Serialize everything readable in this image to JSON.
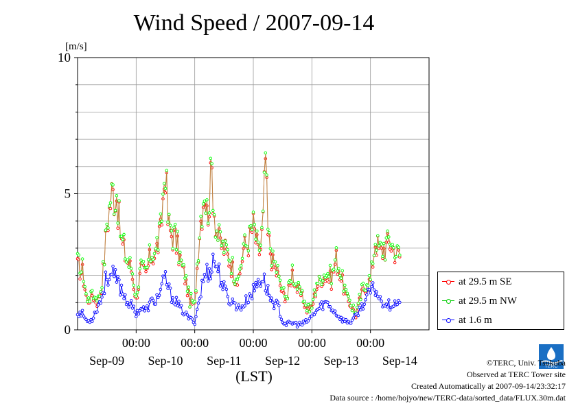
{
  "page": {
    "logo_text": "TERC",
    "footer": {
      "copyright": "©TERC, Univ. Tsukuba",
      "observed": "Observed at TERC Tower site",
      "created": "Created Automatically at 2007-09-14/23:32:17",
      "source": "Data source : /home/hojyo/new/TERC-data/sorted_data/FLUX.30m.dat"
    }
  },
  "chart_data": {
    "type": "line",
    "title": "Wind Speed / 2007-09-14",
    "xlabel": "(LST)",
    "ylabel": "[m/s]",
    "ylim": [
      0,
      10
    ],
    "yticks": [
      0,
      5,
      10
    ],
    "x_range_hours": [
      0,
      144
    ],
    "x_tick_labels": [
      "00:00",
      "00:00",
      "00:00",
      "00:00",
      "00:00"
    ],
    "x_tick_hours": [
      24,
      48,
      72,
      96,
      120
    ],
    "date_labels": [
      {
        "label": "Sep-09",
        "hour": 12
      },
      {
        "label": "Sep-10",
        "hour": 36
      },
      {
        "label": "Sep-11",
        "hour": 60
      },
      {
        "label": "Sep-12",
        "hour": 84
      },
      {
        "label": "Sep-13",
        "hour": 108
      },
      {
        "label": "Sep-14",
        "hour": 132
      }
    ],
    "grid": true,
    "legend_position": "right",
    "sample_interval_hours": 0.5,
    "series": [
      {
        "name": "at 29.5 m SE",
        "color": "#ff0000",
        "key_values": [
          [
            0,
            2.3
          ],
          [
            2,
            2.1
          ],
          [
            4,
            1.0
          ],
          [
            6,
            1.3
          ],
          [
            8,
            1.0
          ],
          [
            10,
            1.6
          ],
          [
            12,
            3.8
          ],
          [
            14,
            5.0
          ],
          [
            16,
            4.9
          ],
          [
            17,
            4.0
          ],
          [
            18,
            3.2
          ],
          [
            20,
            2.6
          ],
          [
            22,
            2.2
          ],
          [
            24,
            1.1
          ],
          [
            26,
            2.2
          ],
          [
            28,
            2.0
          ],
          [
            30,
            2.7
          ],
          [
            32,
            2.8
          ],
          [
            34,
            3.5
          ],
          [
            36,
            6.0
          ],
          [
            37,
            4.0
          ],
          [
            38,
            3.6
          ],
          [
            40,
            3.3
          ],
          [
            42,
            2.6
          ],
          [
            44,
            1.9
          ],
          [
            46,
            1.0
          ],
          [
            48,
            0.9
          ],
          [
            50,
            3.7
          ],
          [
            52,
            5.2
          ],
          [
            53,
            4.2
          ],
          [
            54,
            4.8
          ],
          [
            55,
            5.8
          ],
          [
            56,
            4.4
          ],
          [
            57,
            3.7
          ],
          [
            58,
            3.2
          ],
          [
            60,
            3.0
          ],
          [
            62,
            2.6
          ],
          [
            64,
            2.1
          ],
          [
            66,
            1.7
          ],
          [
            68,
            3.0
          ],
          [
            70,
            3.2
          ],
          [
            72,
            3.8
          ],
          [
            74,
            2.8
          ],
          [
            75,
            3.0
          ],
          [
            76,
            4.0
          ],
          [
            77,
            6.3
          ],
          [
            78,
            3.4
          ],
          [
            80,
            2.4
          ],
          [
            82,
            2.0
          ],
          [
            84,
            1.3
          ],
          [
            86,
            1.2
          ],
          [
            88,
            2.1
          ],
          [
            90,
            1.5
          ],
          [
            92,
            1.2
          ],
          [
            94,
            0.7
          ],
          [
            96,
            0.8
          ],
          [
            98,
            1.6
          ],
          [
            100,
            1.9
          ],
          [
            102,
            2.0
          ],
          [
            104,
            1.8
          ],
          [
            106,
            2.6
          ],
          [
            108,
            1.9
          ],
          [
            110,
            1.2
          ],
          [
            112,
            0.9
          ],
          [
            114,
            0.5
          ],
          [
            116,
            1.2
          ],
          [
            118,
            1.6
          ],
          [
            120,
            1.8
          ],
          [
            122,
            3.3
          ],
          [
            124,
            2.8
          ],
          [
            126,
            3.0
          ],
          [
            128,
            3.2
          ],
          [
            130,
            2.9
          ],
          [
            132,
            2.7
          ]
        ]
      },
      {
        "name": "at 29.5 m NW",
        "color": "#00ff00",
        "key_values": [
          [
            0,
            2.3
          ],
          [
            2,
            2.2
          ],
          [
            4,
            1.1
          ],
          [
            6,
            1.4
          ],
          [
            8,
            1.1
          ],
          [
            10,
            1.7
          ],
          [
            12,
            4.0
          ],
          [
            14,
            5.2
          ],
          [
            16,
            5.3
          ],
          [
            17,
            4.1
          ],
          [
            18,
            3.3
          ],
          [
            20,
            2.7
          ],
          [
            22,
            2.3
          ],
          [
            24,
            1.2
          ],
          [
            26,
            2.3
          ],
          [
            28,
            2.1
          ],
          [
            30,
            2.8
          ],
          [
            32,
            3.0
          ],
          [
            34,
            3.7
          ],
          [
            36,
            6.1
          ],
          [
            37,
            4.2
          ],
          [
            38,
            3.8
          ],
          [
            40,
            3.4
          ],
          [
            42,
            2.7
          ],
          [
            44,
            2.0
          ],
          [
            46,
            1.1
          ],
          [
            48,
            1.0
          ],
          [
            50,
            3.9
          ],
          [
            52,
            5.4
          ],
          [
            53,
            4.4
          ],
          [
            54,
            5.0
          ],
          [
            55,
            6.4
          ],
          [
            56,
            4.6
          ],
          [
            57,
            3.8
          ],
          [
            58,
            3.3
          ],
          [
            60,
            3.1
          ],
          [
            62,
            2.7
          ],
          [
            64,
            2.2
          ],
          [
            66,
            1.8
          ],
          [
            68,
            3.1
          ],
          [
            70,
            3.3
          ],
          [
            72,
            4.0
          ],
          [
            74,
            2.9
          ],
          [
            75,
            3.1
          ],
          [
            76,
            4.2
          ],
          [
            77,
            6.7
          ],
          [
            78,
            3.6
          ],
          [
            80,
            2.5
          ],
          [
            82,
            2.1
          ],
          [
            84,
            1.4
          ],
          [
            86,
            1.3
          ],
          [
            88,
            2.2
          ],
          [
            90,
            1.6
          ],
          [
            92,
            1.3
          ],
          [
            94,
            0.8
          ],
          [
            96,
            0.9
          ],
          [
            98,
            1.7
          ],
          [
            100,
            2.0
          ],
          [
            102,
            2.1
          ],
          [
            104,
            1.9
          ],
          [
            106,
            2.7
          ],
          [
            108,
            2.0
          ],
          [
            110,
            1.3
          ],
          [
            112,
            1.0
          ],
          [
            114,
            0.6
          ],
          [
            116,
            1.3
          ],
          [
            118,
            1.7
          ],
          [
            120,
            1.9
          ],
          [
            122,
            3.5
          ],
          [
            124,
            3.0
          ],
          [
            126,
            3.2
          ],
          [
            128,
            3.4
          ],
          [
            130,
            3.1
          ],
          [
            132,
            2.9
          ]
        ]
      },
      {
        "name": "at 1.6 m",
        "color": "#0000ff",
        "key_values": [
          [
            0,
            0.6
          ],
          [
            2,
            0.6
          ],
          [
            4,
            0.3
          ],
          [
            6,
            0.4
          ],
          [
            8,
            0.8
          ],
          [
            10,
            1.2
          ],
          [
            12,
            2.0
          ],
          [
            14,
            2.0
          ],
          [
            16,
            1.8
          ],
          [
            18,
            1.5
          ],
          [
            20,
            1.1
          ],
          [
            22,
            0.9
          ],
          [
            24,
            0.6
          ],
          [
            26,
            0.8
          ],
          [
            28,
            0.7
          ],
          [
            30,
            1.0
          ],
          [
            32,
            1.1
          ],
          [
            34,
            1.4
          ],
          [
            36,
            1.9
          ],
          [
            38,
            1.3
          ],
          [
            40,
            1.1
          ],
          [
            42,
            0.8
          ],
          [
            44,
            0.6
          ],
          [
            46,
            0.4
          ],
          [
            48,
            0.3
          ],
          [
            50,
            1.2
          ],
          [
            52,
            2.0
          ],
          [
            54,
            2.2
          ],
          [
            56,
            2.6
          ],
          [
            58,
            2.1
          ],
          [
            60,
            1.5
          ],
          [
            62,
            1.1
          ],
          [
            64,
            1.0
          ],
          [
            66,
            0.8
          ],
          [
            68,
            0.9
          ],
          [
            70,
            1.2
          ],
          [
            72,
            1.4
          ],
          [
            74,
            1.8
          ],
          [
            76,
            1.9
          ],
          [
            78,
            1.4
          ],
          [
            80,
            1.0
          ],
          [
            82,
            0.9
          ],
          [
            84,
            0.3
          ],
          [
            86,
            0.2
          ],
          [
            88,
            0.25
          ],
          [
            90,
            0.2
          ],
          [
            92,
            0.2
          ],
          [
            94,
            0.3
          ],
          [
            96,
            0.5
          ],
          [
            98,
            0.7
          ],
          [
            100,
            0.9
          ],
          [
            102,
            1.0
          ],
          [
            104,
            0.8
          ],
          [
            106,
            0.6
          ],
          [
            108,
            0.4
          ],
          [
            110,
            0.3
          ],
          [
            112,
            0.3
          ],
          [
            114,
            0.5
          ],
          [
            116,
            0.8
          ],
          [
            118,
            1.1
          ],
          [
            120,
            1.4
          ],
          [
            122,
            1.5
          ],
          [
            124,
            1.1
          ],
          [
            126,
            1.0
          ],
          [
            128,
            0.9
          ],
          [
            130,
            1.0
          ],
          [
            132,
            0.9
          ]
        ]
      }
    ]
  }
}
